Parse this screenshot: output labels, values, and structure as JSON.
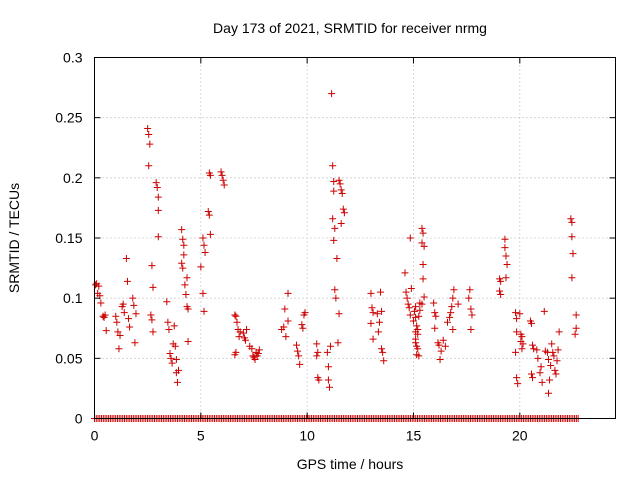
{
  "chart_data": {
    "type": "scatter",
    "title": "Day 173 of 2021, SRMTID for receiver nrmg",
    "xlabel": "GPS time / hours",
    "ylabel": "SRMTID / TECUs",
    "xlim": [
      0,
      24.5
    ],
    "ylim": [
      0,
      0.3
    ],
    "grid": true,
    "x_ticks": [
      0,
      5,
      10,
      15,
      20
    ],
    "x_tick_labels": [
      "0",
      "5",
      "10",
      "15",
      "20"
    ],
    "y_ticks": [
      0,
      0.05,
      0.1,
      0.15,
      0.2,
      0.25,
      0.3
    ],
    "y_tick_labels": [
      "0",
      "0.05",
      "0.1",
      "0.15",
      "0.2",
      "0.25",
      "0.3"
    ],
    "marker": "+",
    "color": "#cc0000",
    "zero_baseline": {
      "x_start": 0,
      "x_end": 22.75,
      "step": 0.083,
      "y": 0
    },
    "series": [
      {
        "name": "SRMTID",
        "points": [
          [
            0.05,
            0.111
          ],
          [
            0.1,
            0.112
          ],
          [
            0.15,
            0.104
          ],
          [
            0.2,
            0.11
          ],
          [
            0.25,
            0.102
          ],
          [
            0.3,
            0.096
          ],
          [
            0.4,
            0.085
          ],
          [
            0.45,
            0.084
          ],
          [
            0.5,
            0.086
          ],
          [
            0.55,
            0.073
          ],
          [
            1.0,
            0.085
          ],
          [
            1.05,
            0.08
          ],
          [
            1.1,
            0.072
          ],
          [
            1.15,
            0.058
          ],
          [
            1.2,
            0.069
          ],
          [
            1.3,
            0.093
          ],
          [
            1.35,
            0.095
          ],
          [
            1.4,
            0.088
          ],
          [
            1.5,
            0.133
          ],
          [
            1.55,
            0.114
          ],
          [
            1.6,
            0.083
          ],
          [
            1.65,
            0.076
          ],
          [
            1.8,
            0.1
          ],
          [
            1.85,
            0.094
          ],
          [
            1.9,
            0.063
          ],
          [
            1.95,
            0.087
          ],
          [
            2.5,
            0.241
          ],
          [
            2.55,
            0.236
          ],
          [
            2.6,
            0.228
          ],
          [
            2.55,
            0.21
          ],
          [
            2.7,
            0.127
          ],
          [
            2.75,
            0.109
          ],
          [
            2.65,
            0.086
          ],
          [
            2.7,
            0.082
          ],
          [
            2.75,
            0.072
          ],
          [
            2.9,
            0.196
          ],
          [
            2.95,
            0.192
          ],
          [
            3.0,
            0.184
          ],
          [
            3.0,
            0.173
          ],
          [
            3.0,
            0.151
          ],
          [
            3.4,
            0.097
          ],
          [
            3.45,
            0.08
          ],
          [
            3.5,
            0.074
          ],
          [
            3.55,
            0.054
          ],
          [
            3.6,
            0.05
          ],
          [
            3.65,
            0.046
          ],
          [
            3.7,
            0.062
          ],
          [
            3.75,
            0.077
          ],
          [
            3.8,
            0.06
          ],
          [
            3.85,
            0.049
          ],
          [
            3.85,
            0.038
          ],
          [
            3.9,
            0.03
          ],
          [
            3.95,
            0.04
          ],
          [
            4.1,
            0.157
          ],
          [
            4.15,
            0.149
          ],
          [
            4.2,
            0.144
          ],
          [
            4.1,
            0.129
          ],
          [
            4.15,
            0.125
          ],
          [
            4.2,
            0.136
          ],
          [
            4.25,
            0.111
          ],
          [
            4.35,
            0.117
          ],
          [
            4.3,
            0.103
          ],
          [
            4.35,
            0.093
          ],
          [
            4.4,
            0.091
          ],
          [
            4.4,
            0.064
          ],
          [
            5.1,
            0.15
          ],
          [
            5.15,
            0.144
          ],
          [
            5.2,
            0.138
          ],
          [
            5.0,
            0.126
          ],
          [
            5.1,
            0.104
          ],
          [
            5.15,
            0.089
          ],
          [
            5.35,
            0.172
          ],
          [
            5.4,
            0.169
          ],
          [
            5.45,
            0.153
          ],
          [
            5.4,
            0.204
          ],
          [
            5.45,
            0.202
          ],
          [
            5.95,
            0.205
          ],
          [
            6.0,
            0.202
          ],
          [
            6.05,
            0.198
          ],
          [
            6.1,
            0.194
          ],
          [
            6.6,
            0.086
          ],
          [
            6.65,
            0.085
          ],
          [
            6.7,
            0.08
          ],
          [
            6.75,
            0.074
          ],
          [
            6.8,
            0.068
          ],
          [
            6.6,
            0.053
          ],
          [
            6.65,
            0.055
          ],
          [
            6.85,
            0.072
          ],
          [
            7.0,
            0.071
          ],
          [
            7.05,
            0.067
          ],
          [
            7.1,
            0.065
          ],
          [
            7.15,
            0.074
          ],
          [
            7.3,
            0.06
          ],
          [
            7.4,
            0.058
          ],
          [
            7.45,
            0.052
          ],
          [
            7.5,
            0.051
          ],
          [
            7.55,
            0.049
          ],
          [
            7.6,
            0.055
          ],
          [
            7.65,
            0.052
          ],
          [
            7.7,
            0.054
          ],
          [
            7.75,
            0.057
          ],
          [
            8.8,
            0.074
          ],
          [
            8.9,
            0.076
          ],
          [
            9.0,
            0.068
          ],
          [
            9.1,
            0.081
          ],
          [
            8.95,
            0.091
          ],
          [
            9.1,
            0.104
          ],
          [
            9.5,
            0.061
          ],
          [
            9.55,
            0.056
          ],
          [
            9.6,
            0.052
          ],
          [
            9.65,
            0.045
          ],
          [
            9.75,
            0.078
          ],
          [
            9.8,
            0.075
          ],
          [
            9.85,
            0.086
          ],
          [
            9.9,
            0.088
          ],
          [
            10.45,
            0.052
          ],
          [
            10.5,
            0.055
          ],
          [
            10.45,
            0.062
          ],
          [
            10.5,
            0.034
          ],
          [
            10.55,
            0.032
          ],
          [
            10.95,
            0.055
          ],
          [
            11.0,
            0.043
          ],
          [
            11.0,
            0.032
          ],
          [
            11.05,
            0.026
          ],
          [
            11.1,
            0.06
          ],
          [
            11.15,
            0.27
          ],
          [
            11.2,
            0.21
          ],
          [
            11.25,
            0.197
          ],
          [
            11.25,
            0.189
          ],
          [
            11.2,
            0.166
          ],
          [
            11.3,
            0.158
          ],
          [
            11.25,
            0.148
          ],
          [
            11.3,
            0.107
          ],
          [
            11.35,
            0.1
          ],
          [
            11.4,
            0.133
          ],
          [
            11.45,
            0.063
          ],
          [
            11.5,
            0.198
          ],
          [
            11.55,
            0.195
          ],
          [
            11.6,
            0.19
          ],
          [
            11.65,
            0.187
          ],
          [
            11.7,
            0.174
          ],
          [
            11.75,
            0.171
          ],
          [
            11.6,
            0.162
          ],
          [
            11.5,
            0.087
          ],
          [
            13.0,
            0.104
          ],
          [
            13.05,
            0.092
          ],
          [
            13.1,
            0.088
          ],
          [
            13.0,
            0.079
          ],
          [
            13.1,
            0.066
          ],
          [
            13.3,
            0.087
          ],
          [
            13.35,
            0.072
          ],
          [
            13.4,
            0.08
          ],
          [
            13.45,
            0.105
          ],
          [
            13.5,
            0.089
          ],
          [
            13.5,
            0.058
          ],
          [
            13.55,
            0.055
          ],
          [
            13.6,
            0.048
          ],
          [
            14.6,
            0.121
          ],
          [
            14.65,
            0.105
          ],
          [
            14.7,
            0.1
          ],
          [
            14.75,
            0.095
          ],
          [
            14.8,
            0.092
          ],
          [
            14.85,
            0.086
          ],
          [
            14.85,
            0.15
          ],
          [
            14.9,
            0.108
          ],
          [
            15.0,
            0.081
          ],
          [
            15.05,
            0.089
          ],
          [
            15.1,
            0.093
          ],
          [
            15.1,
            0.084
          ],
          [
            15.15,
            0.077
          ],
          [
            15.1,
            0.072
          ],
          [
            15.1,
            0.066
          ],
          [
            15.1,
            0.063
          ],
          [
            15.15,
            0.06
          ],
          [
            15.2,
            0.058
          ],
          [
            15.2,
            0.07
          ],
          [
            15.15,
            0.053
          ],
          [
            15.25,
            0.052
          ],
          [
            15.3,
            0.09
          ],
          [
            15.25,
            0.085
          ],
          [
            15.2,
            0.074
          ],
          [
            15.3,
            0.096
          ],
          [
            15.4,
            0.158
          ],
          [
            15.45,
            0.154
          ],
          [
            15.4,
            0.146
          ],
          [
            15.5,
            0.143
          ],
          [
            15.45,
            0.128
          ],
          [
            15.45,
            0.116
          ],
          [
            15.5,
            0.101
          ],
          [
            15.4,
            0.095
          ],
          [
            15.95,
            0.096
          ],
          [
            16.0,
            0.088
          ],
          [
            16.05,
            0.085
          ],
          [
            16.0,
            0.075
          ],
          [
            16.15,
            0.063
          ],
          [
            16.2,
            0.061
          ],
          [
            16.25,
            0.049
          ],
          [
            16.3,
            0.056
          ],
          [
            16.4,
            0.065
          ],
          [
            16.5,
            0.06
          ],
          [
            16.6,
            0.08
          ],
          [
            16.7,
            0.084
          ],
          [
            16.75,
            0.088
          ],
          [
            16.8,
            0.093
          ],
          [
            16.85,
            0.1
          ],
          [
            16.9,
            0.107
          ],
          [
            16.85,
            0.074
          ],
          [
            17.1,
            0.095
          ],
          [
            17.6,
            0.1
          ],
          [
            17.65,
            0.107
          ],
          [
            17.7,
            0.091
          ],
          [
            17.75,
            0.086
          ],
          [
            17.7,
            0.074
          ],
          [
            19.05,
            0.116
          ],
          [
            19.1,
            0.114
          ],
          [
            19.05,
            0.106
          ],
          [
            19.1,
            0.103
          ],
          [
            19.3,
            0.149
          ],
          [
            19.3,
            0.142
          ],
          [
            19.35,
            0.135
          ],
          [
            19.4,
            0.128
          ],
          [
            19.35,
            0.117
          ],
          [
            19.8,
            0.088
          ],
          [
            19.85,
            0.083
          ],
          [
            19.85,
            0.072
          ],
          [
            19.8,
            0.055
          ],
          [
            19.85,
            0.034
          ],
          [
            19.9,
            0.029
          ],
          [
            20.0,
            0.087
          ],
          [
            20.05,
            0.07
          ],
          [
            20.1,
            0.068
          ],
          [
            20.05,
            0.064
          ],
          [
            20.1,
            0.058
          ],
          [
            20.15,
            0.062
          ],
          [
            20.5,
            0.081
          ],
          [
            20.55,
            0.079
          ],
          [
            20.6,
            0.061
          ],
          [
            20.65,
            0.058
          ],
          [
            20.55,
            0.037
          ],
          [
            20.6,
            0.034
          ],
          [
            20.8,
            0.057
          ],
          [
            20.85,
            0.05
          ],
          [
            20.95,
            0.038
          ],
          [
            21.0,
            0.043
          ],
          [
            21.05,
            0.03
          ],
          [
            21.15,
            0.089
          ],
          [
            21.2,
            0.056
          ],
          [
            21.3,
            0.055
          ],
          [
            21.35,
            0.049
          ],
          [
            21.35,
            0.021
          ],
          [
            21.4,
            0.032
          ],
          [
            21.45,
            0.044
          ],
          [
            21.5,
            0.062
          ],
          [
            21.55,
            0.055
          ],
          [
            21.6,
            0.052
          ],
          [
            21.65,
            0.04
          ],
          [
            21.7,
            0.037
          ],
          [
            21.75,
            0.048
          ],
          [
            21.8,
            0.057
          ],
          [
            21.85,
            0.072
          ],
          [
            22.4,
            0.166
          ],
          [
            22.45,
            0.163
          ],
          [
            22.45,
            0.151
          ],
          [
            22.5,
            0.137
          ],
          [
            22.45,
            0.117
          ],
          [
            22.65,
            0.086
          ],
          [
            22.65,
            0.075
          ],
          [
            22.6,
            0.07
          ]
        ]
      }
    ]
  }
}
